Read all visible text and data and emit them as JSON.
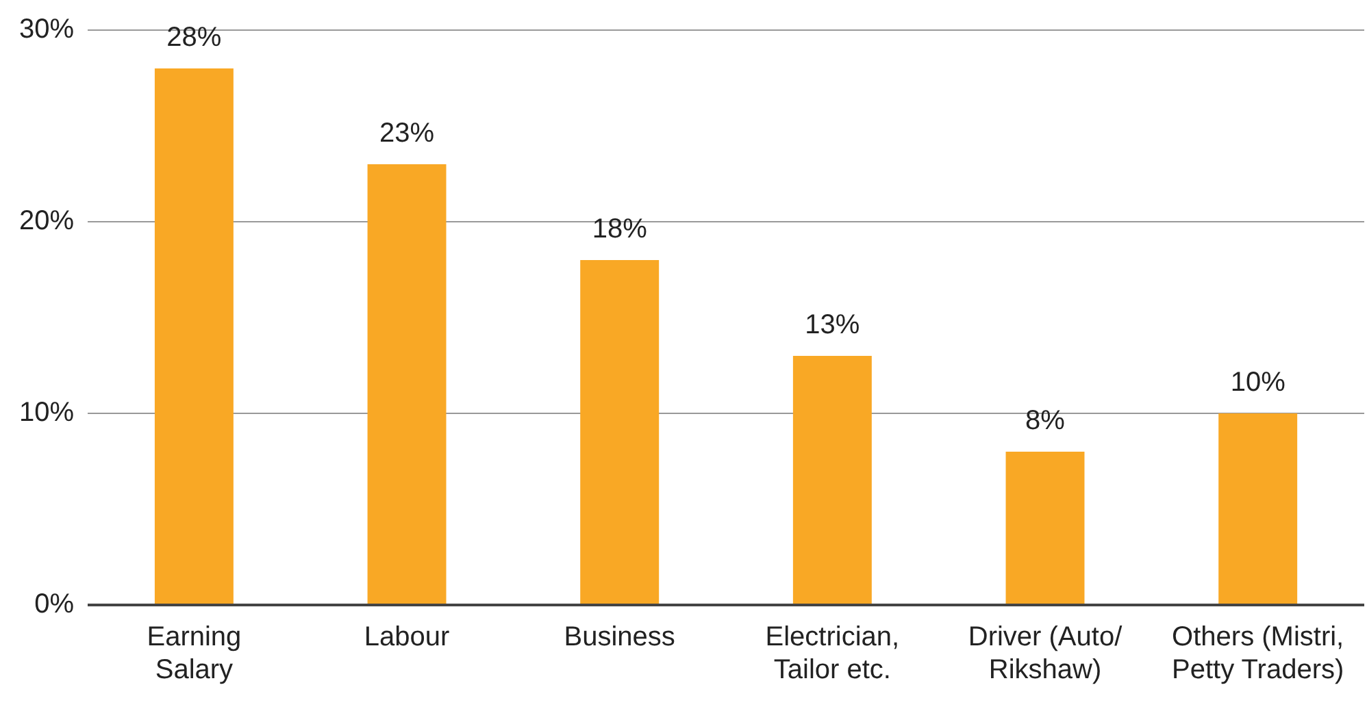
{
  "chart_data": {
    "type": "bar",
    "categories": [
      "Earning Salary",
      "Labour",
      "Business",
      "Electrician, Tailor etc.",
      "Driver (Auto/ Rikshaw)",
      "Others (Mistri, Petty Traders)"
    ],
    "values": [
      28,
      23,
      18,
      13,
      8,
      10
    ],
    "value_labels": [
      "28%",
      "23%",
      "18%",
      "13%",
      "8%",
      "10%"
    ],
    "color": "#f9a825",
    "ylim": [
      0,
      30
    ],
    "yticks": [
      {
        "value": 0,
        "label": "0%"
      },
      {
        "value": 10,
        "label": "10%"
      },
      {
        "value": 20,
        "label": "20%"
      },
      {
        "value": 30,
        "label": "30%"
      }
    ],
    "grid": "y"
  }
}
